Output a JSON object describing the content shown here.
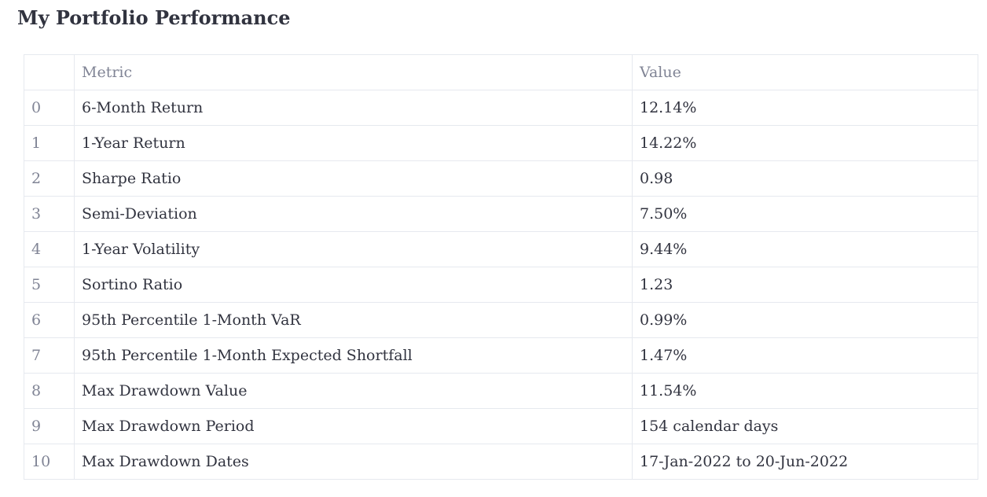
{
  "page": {
    "title": "My Portfolio Performance"
  },
  "table": {
    "columns": {
      "index": "",
      "metric": "Metric",
      "value": "Value"
    },
    "rows": [
      {
        "index": "0",
        "metric": "6-Month Return",
        "value": "12.14%"
      },
      {
        "index": "1",
        "metric": "1-Year Return",
        "value": "14.22%"
      },
      {
        "index": "2",
        "metric": "Sharpe Ratio",
        "value": "0.98"
      },
      {
        "index": "3",
        "metric": "Semi-Deviation",
        "value": "7.50%"
      },
      {
        "index": "4",
        "metric": "1-Year Volatility",
        "value": "9.44%"
      },
      {
        "index": "5",
        "metric": "Sortino Ratio",
        "value": "1.23"
      },
      {
        "index": "6",
        "metric": "95th Percentile 1-Month VaR",
        "value": "0.99%"
      },
      {
        "index": "7",
        "metric": "95th Percentile 1-Month Expected Shortfall",
        "value": "1.47%"
      },
      {
        "index": "8",
        "metric": "Max Drawdown Value",
        "value": "11.54%"
      },
      {
        "index": "9",
        "metric": "Max Drawdown Period",
        "value": "154 calendar days"
      },
      {
        "index": "10",
        "metric": "Max Drawdown Dates",
        "value": "17-Jan-2022 to 20-Jun-2022"
      }
    ]
  },
  "colors": {
    "text": "#31333f",
    "muted_text": "#808495",
    "border": "#e6e9ef",
    "background": "#ffffff"
  }
}
